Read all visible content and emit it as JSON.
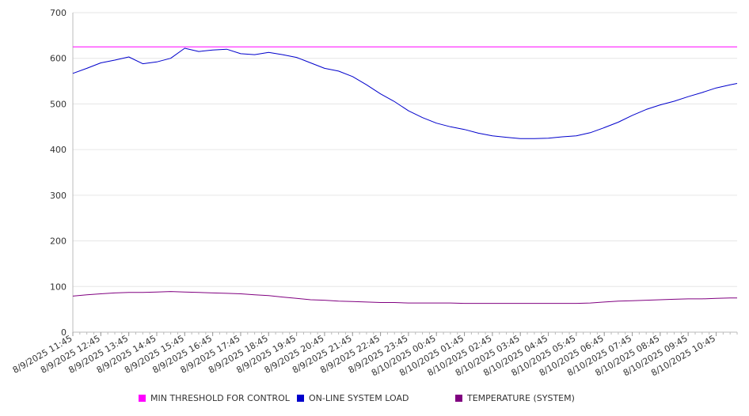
{
  "chart_data": {
    "type": "line",
    "title": "",
    "xlabel": "",
    "ylabel": "",
    "ylim": [
      0,
      700
    ],
    "yticks": [
      0,
      100,
      200,
      300,
      400,
      500,
      600,
      700
    ],
    "grid": "horizontal",
    "legend_position": "bottom",
    "x_tick_labels": [
      "8/9/2025 11:45",
      "8/9/2025 12:45",
      "8/9/2025 13:45",
      "8/9/2025 14:45",
      "8/9/2025 15:45",
      "8/9/2025 16:45",
      "8/9/2025 17:45",
      "8/9/2025 18:45",
      "8/9/2025 19:45",
      "8/9/2025 20:45",
      "8/9/2025 21:45",
      "8/9/2025 22:45",
      "8/9/2025 23:45",
      "8/10/2025 00:45",
      "8/10/2025 01:45",
      "8/10/2025 02:45",
      "8/10/2025 03:45",
      "8/10/2025 04:45",
      "8/10/2025 05:45",
      "8/10/2025 06:45",
      "8/10/2025 07:45",
      "8/10/2025 08:45",
      "8/10/2025 09:45",
      "8/10/2025 10:45"
    ],
    "x_hours": [
      0,
      0.5,
      1,
      1.5,
      2,
      2.5,
      3,
      3.5,
      4,
      4.5,
      5,
      5.5,
      6,
      6.5,
      7,
      7.5,
      8,
      8.5,
      9,
      9.5,
      10,
      10.5,
      11,
      11.5,
      12,
      12.5,
      13,
      13.5,
      14,
      14.5,
      15,
      15.5,
      16,
      16.5,
      17,
      17.5,
      18,
      18.5,
      19,
      19.5,
      20,
      20.5,
      21,
      21.5,
      22,
      22.5,
      23,
      23.5,
      23.75
    ],
    "series": [
      {
        "name": "MIN THRESHOLD FOR CONTROL",
        "color": "#ff00ff",
        "values": [
          625,
          625,
          625,
          625,
          625,
          625,
          625,
          625,
          625,
          625,
          625,
          625,
          625,
          625,
          625,
          625,
          625,
          625,
          625,
          625,
          625,
          625,
          625,
          625,
          625,
          625,
          625,
          625,
          625,
          625,
          625,
          625,
          625,
          625,
          625,
          625,
          625,
          625,
          625,
          625,
          625,
          625,
          625,
          625,
          625,
          625,
          625,
          625,
          625
        ]
      },
      {
        "name": "ON-LINE SYSTEM LOAD",
        "color": "#0000cc",
        "values": [
          567,
          578,
          590,
          596,
          603,
          588,
          592,
          600,
          622,
          615,
          618,
          620,
          610,
          608,
          613,
          608,
          602,
          590,
          578,
          572,
          560,
          542,
          522,
          505,
          485,
          470,
          458,
          450,
          444,
          436,
          430,
          427,
          424,
          424,
          425,
          428,
          430,
          437,
          448,
          460,
          475,
          488,
          498,
          506,
          516,
          525,
          535,
          542,
          545
        ]
      },
      {
        "name": "TEMPERATURE (SYSTEM)",
        "color": "#800080",
        "values": [
          79,
          82,
          84,
          86,
          87,
          87,
          88,
          89,
          88,
          87,
          86,
          85,
          84,
          82,
          80,
          77,
          74,
          71,
          70,
          68,
          67,
          66,
          65,
          65,
          64,
          64,
          64,
          64,
          63,
          63,
          63,
          63,
          63,
          63,
          63,
          63,
          63,
          64,
          66,
          68,
          69,
          70,
          71,
          72,
          73,
          73,
          74,
          75,
          75
        ]
      }
    ]
  }
}
